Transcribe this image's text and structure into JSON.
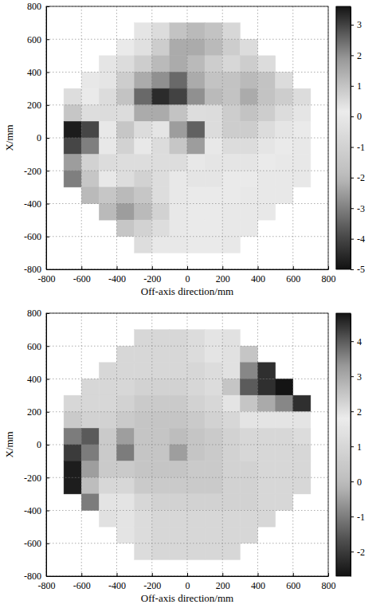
{
  "chart_data": [
    {
      "type": "heatmap",
      "xlabel": "Off-axis direction/mm",
      "ylabel": "X/mm",
      "xlim": [
        -800,
        800
      ],
      "ylim": [
        -800,
        800
      ],
      "xticks": [
        -800,
        -600,
        -400,
        -200,
        0,
        200,
        400,
        600,
        800
      ],
      "yticks": [
        -800,
        -600,
        -400,
        -200,
        0,
        200,
        400,
        600,
        800
      ],
      "grid": true,
      "colorbar_range": [
        -5,
        3.6
      ],
      "colorbar_ticks": [
        -5,
        -4,
        -3,
        -2,
        -1,
        0,
        1,
        2,
        3
      ],
      "x": [
        -750,
        -650,
        -550,
        -450,
        -350,
        -250,
        -150,
        -50,
        50,
        150,
        250,
        350,
        450,
        550,
        650,
        750
      ],
      "y": [
        750,
        650,
        550,
        450,
        350,
        250,
        150,
        50,
        -50,
        -150,
        -250,
        -350,
        -450,
        -550,
        -650,
        -750
      ],
      "values": [
        [
          null,
          null,
          null,
          null,
          null,
          null,
          null,
          null,
          null,
          null,
          null,
          null,
          null,
          null,
          null,
          null
        ],
        [
          null,
          null,
          null,
          null,
          null,
          0.3,
          0.5,
          1.0,
          1.2,
          1.0,
          0.6,
          null,
          null,
          null,
          null,
          null
        ],
        [
          null,
          null,
          null,
          null,
          0.2,
          0.4,
          0.8,
          1.5,
          1.5,
          1.2,
          0.8,
          0.5,
          null,
          null,
          null,
          null
        ],
        [
          null,
          null,
          null,
          0.3,
          0.5,
          0.8,
          1.2,
          1.5,
          1.2,
          0.8,
          0.6,
          0.8,
          0.5,
          null,
          null,
          null
        ],
        [
          null,
          null,
          0,
          0.3,
          0.8,
          1.5,
          2.0,
          2.5,
          1.5,
          1.0,
          1.0,
          1.2,
          1.0,
          0.5,
          null,
          null
        ],
        [
          null,
          -0.5,
          0.2,
          0.5,
          1.0,
          2.5,
          3.3,
          3.0,
          2.0,
          1.2,
          1.0,
          1.5,
          1.0,
          0.8,
          0.5,
          null
        ],
        [
          null,
          -1.5,
          -0.5,
          0.5,
          0.5,
          1.5,
          1.5,
          1.0,
          -0.5,
          0.5,
          0.8,
          1.0,
          0.8,
          0.5,
          0.3,
          null
        ],
        [
          null,
          -4.8,
          -4.0,
          0,
          -1.5,
          0.5,
          0.3,
          -2.5,
          -3.5,
          0.5,
          0.8,
          0.8,
          0.5,
          0.3,
          0.2,
          null
        ],
        [
          null,
          -4.0,
          -3.0,
          0,
          -1.0,
          0,
          0.5,
          -1.5,
          -2.5,
          0,
          0.5,
          0.5,
          0.3,
          0.2,
          0,
          null
        ],
        [
          null,
          -2.5,
          -1.0,
          0.5,
          -0.5,
          -0.5,
          -0.5,
          -0.5,
          0,
          0.3,
          0.3,
          0.3,
          0.2,
          0,
          0,
          null
        ],
        [
          null,
          -3.0,
          -1.5,
          0,
          -0.5,
          -1.0,
          -0.5,
          0,
          0.3,
          0.3,
          0.2,
          0.2,
          0,
          0,
          0,
          null
        ],
        [
          null,
          null,
          -2.0,
          -1.5,
          -2.0,
          -1.5,
          -0.5,
          0,
          0.2,
          0.2,
          0.2,
          0,
          0,
          0,
          null,
          null
        ],
        [
          null,
          null,
          null,
          -2.0,
          -2.5,
          -2.0,
          -1.0,
          0,
          0.2,
          0.2,
          0,
          0,
          0,
          null,
          null,
          null
        ],
        [
          null,
          null,
          null,
          null,
          -1.5,
          -1.0,
          -0.5,
          0,
          0.2,
          0.2,
          0,
          0,
          null,
          null,
          null,
          null
        ],
        [
          null,
          null,
          null,
          null,
          null,
          -0.5,
          0,
          0,
          0.2,
          0.2,
          0,
          null,
          null,
          null,
          null,
          null
        ],
        [
          null,
          null,
          null,
          null,
          null,
          null,
          null,
          null,
          null,
          null,
          null,
          null,
          null,
          null,
          null,
          null
        ]
      ]
    },
    {
      "type": "heatmap",
      "xlabel": "Off-axis direction/mm",
      "ylabel": "X/mm",
      "xlim": [
        -800,
        800
      ],
      "ylim": [
        -800,
        800
      ],
      "xticks": [
        -800,
        -600,
        -400,
        -200,
        0,
        200,
        400,
        600,
        800
      ],
      "yticks": [
        -800,
        -600,
        -400,
        -200,
        0,
        200,
        400,
        600,
        800
      ],
      "grid": true,
      "colorbar_range": [
        -2.7,
        4.8
      ],
      "colorbar_ticks": [
        -2,
        -1,
        0,
        1,
        2,
        3,
        4
      ],
      "x": [
        -750,
        -650,
        -550,
        -450,
        -350,
        -250,
        -150,
        -50,
        50,
        150,
        250,
        350,
        450,
        550,
        650,
        750
      ],
      "y": [
        750,
        650,
        550,
        450,
        350,
        250,
        150,
        50,
        -50,
        -150,
        -250,
        -350,
        -450,
        -550,
        -650,
        -750
      ],
      "values": [
        [
          null,
          null,
          null,
          null,
          null,
          null,
          null,
          null,
          null,
          null,
          null,
          null,
          null,
          null,
          null,
          null
        ],
        [
          null,
          null,
          null,
          null,
          null,
          1.0,
          1.0,
          1.0,
          1.2,
          1.5,
          2.0,
          null,
          null,
          null,
          null,
          null
        ],
        [
          null,
          null,
          null,
          null,
          1.0,
          1.0,
          1.0,
          1.0,
          1.2,
          1.5,
          2.0,
          2.5,
          null,
          null,
          null,
          null
        ],
        [
          null,
          null,
          null,
          1.0,
          1.0,
          1.0,
          1.0,
          1.0,
          1.0,
          1.2,
          2.0,
          3.5,
          4.5,
          null,
          null,
          null
        ],
        [
          null,
          null,
          1.0,
          1.0,
          1.0,
          0.8,
          0.8,
          0.8,
          1.0,
          1.2,
          2.5,
          4.0,
          4.5,
          4.8,
          null,
          null
        ],
        [
          null,
          1.0,
          1.0,
          1.0,
          0.8,
          0.5,
          0.5,
          0.5,
          0.8,
          1.0,
          1.5,
          2.5,
          3.0,
          3.5,
          4.5,
          null
        ],
        [
          null,
          0.5,
          0.8,
          0.8,
          0.5,
          0.3,
          0.3,
          0.3,
          0.5,
          0.8,
          1.0,
          1.5,
          1.5,
          1.5,
          1.5,
          null
        ],
        [
          null,
          -1.0,
          -1.5,
          0.5,
          -0.5,
          0.3,
          0.3,
          0,
          0.3,
          0.5,
          0.8,
          1.0,
          1.0,
          1.0,
          1.2,
          null
        ],
        [
          null,
          -2.0,
          -1.0,
          0.5,
          -1.0,
          0.3,
          0.3,
          -0.5,
          0.3,
          0.5,
          0.8,
          1.0,
          1.0,
          1.0,
          1.0,
          null
        ],
        [
          null,
          -2.5,
          -0.5,
          0.5,
          0.5,
          0.3,
          0.3,
          0.3,
          0.5,
          0.5,
          0.8,
          0.8,
          1.0,
          1.0,
          1.0,
          null
        ],
        [
          null,
          -2.5,
          0,
          1.0,
          1.0,
          0.5,
          0.5,
          0.5,
          0.5,
          0.5,
          0.8,
          0.8,
          1.0,
          1.0,
          1.0,
          null
        ],
        [
          null,
          null,
          -1.0,
          1.5,
          1.5,
          1.0,
          0.8,
          0.8,
          0.8,
          0.8,
          0.8,
          0.8,
          1.0,
          1.0,
          null,
          null
        ],
        [
          null,
          null,
          null,
          2.0,
          1.5,
          1.2,
          1.0,
          1.0,
          1.0,
          1.0,
          1.0,
          1.0,
          1.0,
          null,
          null,
          null
        ],
        [
          null,
          null,
          null,
          null,
          1.5,
          1.2,
          1.0,
          1.0,
          1.0,
          1.0,
          1.0,
          1.0,
          null,
          null,
          null,
          null
        ],
        [
          null,
          null,
          null,
          null,
          null,
          1.2,
          1.0,
          1.0,
          1.0,
          1.0,
          1.0,
          null,
          null,
          null,
          null,
          null
        ],
        [
          null,
          null,
          null,
          null,
          null,
          null,
          null,
          null,
          null,
          null,
          null,
          null,
          null,
          null,
          null,
          null
        ]
      ]
    }
  ]
}
